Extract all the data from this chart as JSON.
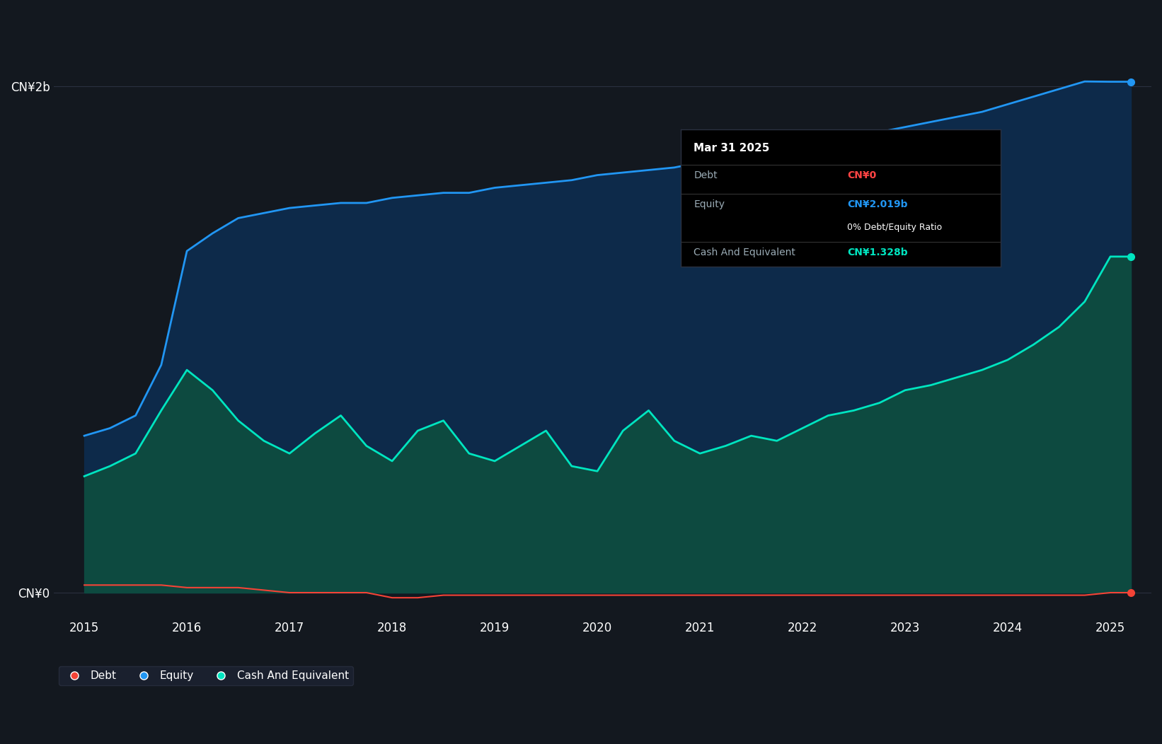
{
  "bg_color": "#13181f",
  "plot_bg_color": "#13181f",
  "equity_color": "#2196f3",
  "cash_color": "#00e5c0",
  "debt_color": "#f44336",
  "fill_equity_color": "#0d2a4a",
  "fill_cash_color": "#0d4a40",
  "grid_color": "#2a3040",
  "text_color": "#ffffff",
  "label_color": "#9aabb5",
  "tooltip": {
    "date": "Mar 31 2025",
    "debt_label": "Debt",
    "debt_value": "CN¥0",
    "equity_label": "Equity",
    "equity_value": "CN¥2.019b",
    "ratio": "0% Debt/Equity Ratio",
    "cash_label": "Cash And Equivalent",
    "cash_value": "CN¥1.328b",
    "bg": "#000000"
  },
  "legend": {
    "debt_label": "Debt",
    "equity_label": "Equity",
    "cash_label": "Cash And Equivalent",
    "bg": "#1c2333",
    "text_color": "#ffffff"
  },
  "years": [
    2015.0,
    2015.25,
    2015.5,
    2015.75,
    2016.0,
    2016.25,
    2016.5,
    2016.75,
    2017.0,
    2017.25,
    2017.5,
    2017.75,
    2018.0,
    2018.25,
    2018.5,
    2018.75,
    2019.0,
    2019.25,
    2019.5,
    2019.75,
    2020.0,
    2020.25,
    2020.5,
    2020.75,
    2021.0,
    2021.25,
    2021.5,
    2021.75,
    2022.0,
    2022.25,
    2022.5,
    2022.75,
    2023.0,
    2023.25,
    2023.5,
    2023.75,
    2024.0,
    2024.25,
    2024.5,
    2024.75,
    2025.0,
    2025.2
  ],
  "equity": [
    0.62,
    0.65,
    0.7,
    0.9,
    1.35,
    1.42,
    1.48,
    1.5,
    1.52,
    1.53,
    1.54,
    1.54,
    1.56,
    1.57,
    1.58,
    1.58,
    1.6,
    1.61,
    1.62,
    1.63,
    1.65,
    1.66,
    1.67,
    1.68,
    1.7,
    1.71,
    1.73,
    1.75,
    1.77,
    1.78,
    1.8,
    1.82,
    1.84,
    1.86,
    1.88,
    1.9,
    1.93,
    1.96,
    1.99,
    2.02,
    2.019,
    2.019
  ],
  "cash": [
    0.46,
    0.5,
    0.55,
    0.72,
    0.88,
    0.8,
    0.68,
    0.6,
    0.55,
    0.63,
    0.7,
    0.58,
    0.52,
    0.64,
    0.68,
    0.55,
    0.52,
    0.58,
    0.64,
    0.5,
    0.48,
    0.64,
    0.72,
    0.6,
    0.55,
    0.58,
    0.62,
    0.6,
    0.65,
    0.7,
    0.72,
    0.75,
    0.8,
    0.82,
    0.85,
    0.88,
    0.92,
    0.98,
    1.05,
    1.15,
    1.328,
    1.328
  ],
  "debt": [
    0.03,
    0.03,
    0.03,
    0.03,
    0.02,
    0.02,
    0.02,
    0.01,
    0.0,
    0.0,
    0.0,
    0.0,
    -0.02,
    -0.02,
    -0.01,
    -0.01,
    -0.01,
    -0.01,
    -0.01,
    -0.01,
    -0.01,
    -0.01,
    -0.01,
    -0.01,
    -0.01,
    -0.01,
    -0.01,
    -0.01,
    -0.01,
    -0.01,
    -0.01,
    -0.01,
    -0.01,
    -0.01,
    -0.01,
    -0.01,
    -0.01,
    -0.01,
    -0.01,
    -0.01,
    0.0,
    0.0
  ],
  "ylim": [
    -0.1,
    2.3
  ],
  "xlim": [
    2014.7,
    2025.4
  ]
}
